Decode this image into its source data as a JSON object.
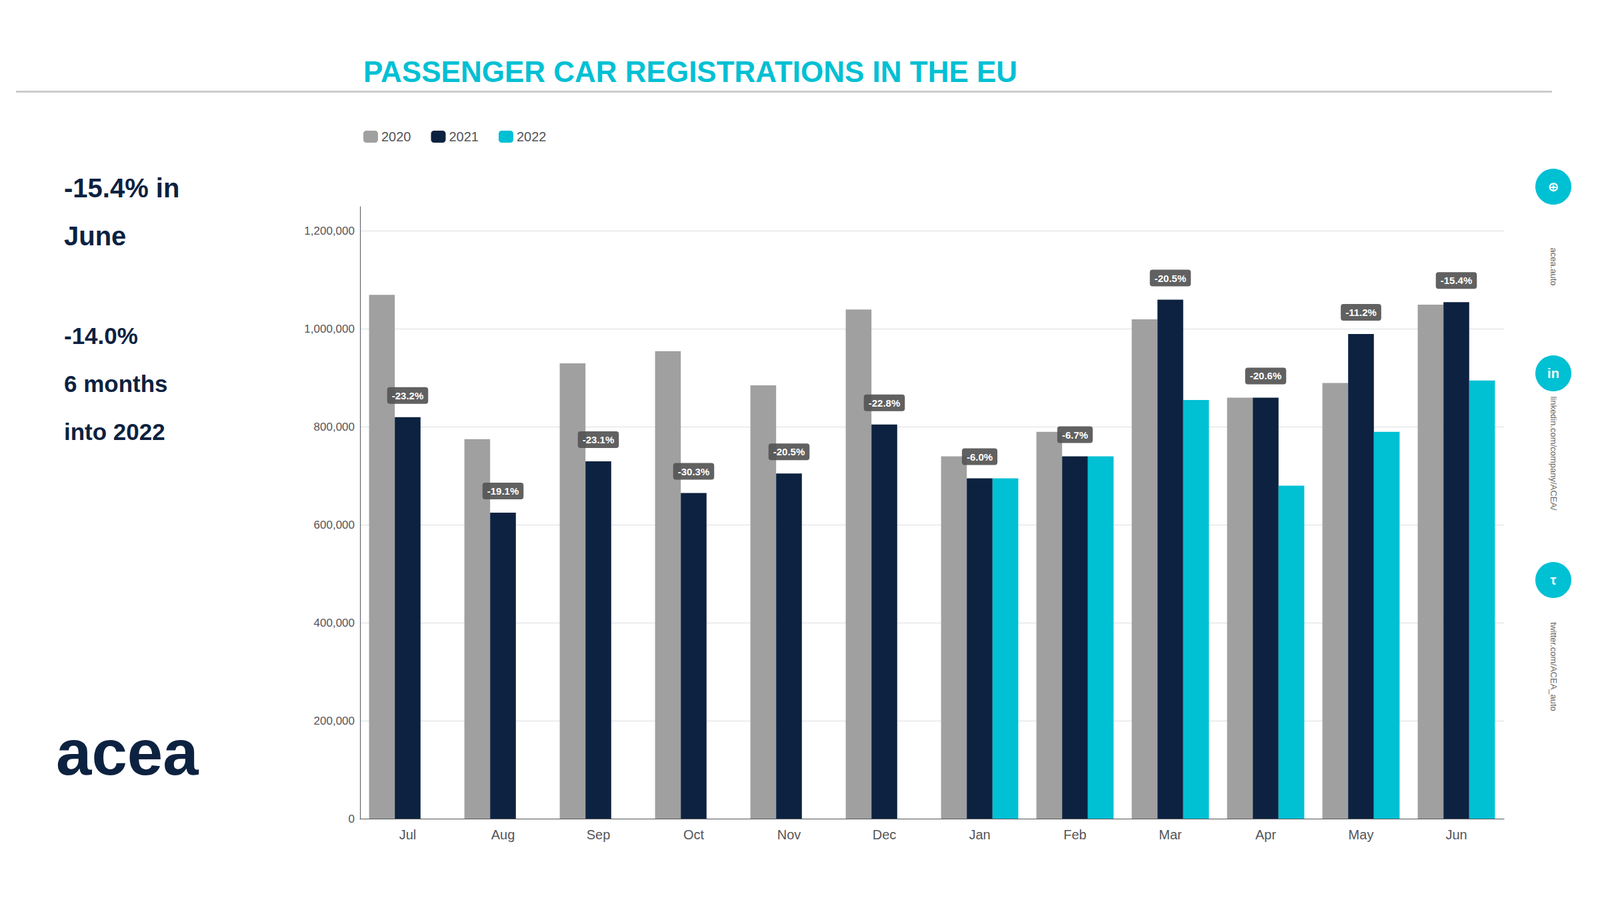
{
  "chart_data": {
    "type": "bar",
    "title": "PASSENGER CAR REGISTRATIONS IN THE EU",
    "categories": [
      "Jul",
      "Aug",
      "Sep",
      "Oct",
      "Nov",
      "Dec",
      "Jan",
      "Feb",
      "Mar",
      "Apr",
      "May",
      "Jun"
    ],
    "series": [
      {
        "name": "2020",
        "color": "#a0a0a0",
        "values": [
          1070000,
          775000,
          930000,
          955000,
          885000,
          1040000,
          740000,
          790000,
          1020000,
          860000,
          890000,
          1050000
        ]
      },
      {
        "name": "2021",
        "color": "#0d2240",
        "values": [
          820000,
          625000,
          730000,
          665000,
          705000,
          805000,
          695000,
          740000,
          1060000,
          860000,
          990000,
          1055000
        ]
      },
      {
        "name": "2022",
        "color": "#00c0d4",
        "values": [
          null,
          null,
          null,
          null,
          null,
          null,
          695000,
          740000,
          855000,
          680000,
          790000,
          895000
        ]
      }
    ],
    "ylim": [
      0,
      1250000
    ],
    "yticks": [
      0,
      {
        "value": 200000,
        "label": "200,000"
      },
      {
        "value": 400000,
        "label": "400,000"
      },
      {
        "value": 600000,
        "label": "600,000"
      },
      {
        "value": 800000,
        "label": "800,000"
      },
      {
        "value": 1000000,
        "label": "1,000,000"
      },
      {
        "value": 1200000,
        "label": "1,200,000"
      }
    ],
    "grid": true,
    "legend": "upper left",
    "annotations": [
      {
        "text": "-23.2%",
        "category": "Jul",
        "series": "2021"
      },
      {
        "text": "-19.1%",
        "category": "Aug",
        "series": "2021"
      },
      {
        "text": "-23.1%",
        "category": "Sep",
        "series": "2021"
      },
      {
        "text": "-30.3%",
        "category": "Oct",
        "series": "2021"
      },
      {
        "text": "-20.5%",
        "category": "Nov",
        "series": "2021"
      },
      {
        "text": "-22.8%",
        "category": "Dec",
        "series": "2021"
      },
      {
        "text": "-6.0%",
        "category": "Jan",
        "series": "2021"
      },
      {
        "text": "-6.7%",
        "category": "Feb",
        "series": "2021"
      },
      {
        "text": "-20.5%",
        "category": "Mar",
        "series": "2021"
      },
      {
        "text": "-20.6%",
        "category": "Apr",
        "series": "2021"
      },
      {
        "text": "-11.2%",
        "category": "May",
        "series": "2021"
      },
      {
        "text": "-15.4%",
        "category": "Jun",
        "series": "2021"
      },
      {
        "text": "-15.4% in"
      },
      {
        "text": "June"
      },
      {
        "text": "-14.0%"
      },
      {
        "text": "6 months"
      },
      {
        "text": "into 2022"
      },
      {
        "text": "acea"
      },
      {
        "text": "acea.auto"
      },
      {
        "text": "linkedin.com/company/ACEA/"
      },
      {
        "text": "twitter.com/ACEA_auto"
      },
      {
        "text": "⊕"
      },
      {
        "text": "in"
      },
      {
        "text": "τ"
      }
    ]
  }
}
